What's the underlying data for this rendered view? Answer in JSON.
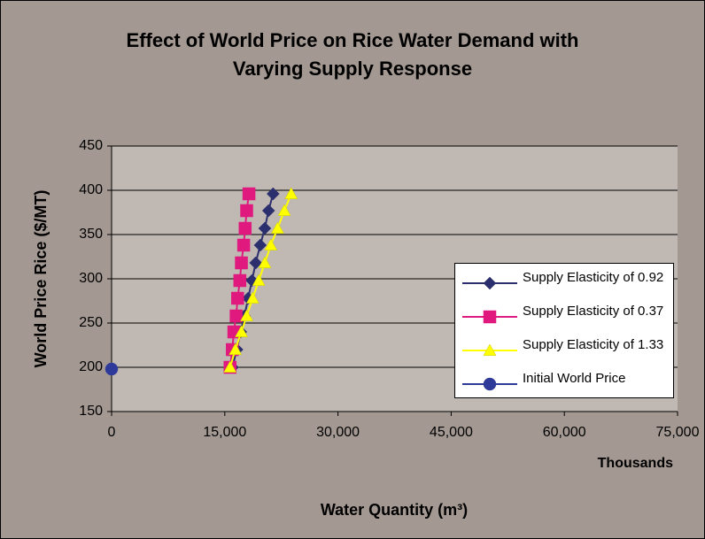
{
  "chart_data": {
    "type": "line",
    "title": "Effect of World Price on Rice Water Demand with Varying Supply Response",
    "x_label": "Water Quantity (m³)",
    "x_unit_label": "Thousands",
    "y_label": "World Price Rice ($/MT)",
    "xlim": [
      0,
      75000
    ],
    "xticks": [
      0,
      {
        "value": 15000,
        "label": "15,000"
      },
      {
        "value": 30000,
        "label": "30,000"
      },
      {
        "value": 45000,
        "label": "45,000"
      },
      {
        "value": 60000,
        "label": "60,000"
      },
      {
        "value": 75000,
        "label": "75,000"
      }
    ],
    "ylim": [
      150,
      450
    ],
    "yticks": [
      150,
      200,
      250,
      300,
      350,
      400,
      450
    ],
    "grid": true,
    "legend": "right",
    "series": [
      {
        "name": "Supply Elasticity of 0.92",
        "color": "#2b2f6e",
        "marker": "diamond",
        "x": [
          16000,
          16600,
          17100,
          17600,
          18100,
          18600,
          19100,
          19700,
          20300,
          20800,
          21400
        ],
        "values": [
          200,
          220,
          240,
          258,
          278,
          298,
          318,
          338,
          357,
          377,
          396
        ]
      },
      {
        "name": "Supply Elasticity of 0.37",
        "color": "#e0197f",
        "marker": "square",
        "x": [
          15700,
          16000,
          16200,
          16500,
          16700,
          17000,
          17200,
          17500,
          17700,
          17900,
          18200
        ],
        "values": [
          200,
          220,
          240,
          258,
          278,
          298,
          318,
          338,
          357,
          377,
          396
        ]
      },
      {
        "name": "Supply Elasticity of 1.33",
        "color": "#ffff00",
        "marker": "triangle",
        "x": [
          15700,
          16400,
          17200,
          17900,
          18700,
          19500,
          20300,
          21100,
          22000,
          22900,
          23800
        ],
        "values": [
          200,
          220,
          240,
          258,
          278,
          298,
          318,
          338,
          357,
          377,
          396
        ]
      },
      {
        "name": "Initial World Price",
        "color": "#2e3a9a",
        "marker": "circle",
        "x": [
          0
        ],
        "values": [
          198
        ]
      }
    ]
  }
}
